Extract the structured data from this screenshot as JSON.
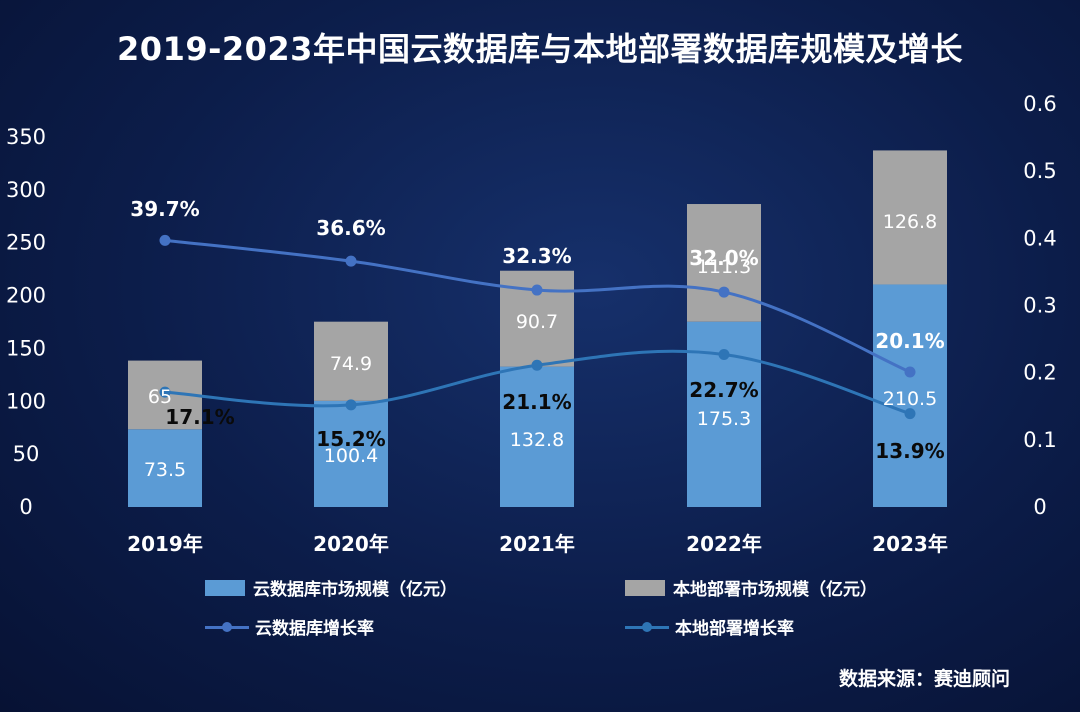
{
  "chart_data": {
    "type": "bar",
    "title": "2019-2023年中国云数据库与本地部署数据库规模及增长",
    "categories": [
      "2019年",
      "2020年",
      "2021年",
      "2022年",
      "2023年"
    ],
    "series": [
      {
        "name": "云数据库市场规模（亿元）",
        "kind": "bar",
        "stack": "total",
        "axis": "left",
        "color": "#5b9bd5",
        "values": [
          73.5,
          100.4,
          132.8,
          175.3,
          210.5
        ],
        "labels": [
          "73.5",
          "100.4",
          "132.8",
          "175.3",
          "210.5"
        ]
      },
      {
        "name": "本地部署市场规模（亿元）",
        "kind": "bar",
        "stack": "total",
        "axis": "left",
        "color": "#a5a5a5",
        "values": [
          65,
          74.9,
          90.7,
          111.3,
          126.8
        ],
        "labels": [
          "65",
          "74.9",
          "90.7",
          "111.3",
          "126.8"
        ]
      },
      {
        "name": "云数据库增长率",
        "kind": "line",
        "axis": "right",
        "color": "#4472c4",
        "values": [
          0.397,
          0.366,
          0.323,
          0.32,
          0.201
        ],
        "labels": [
          "39.7%",
          "36.6%",
          "32.3%",
          "32.0%",
          "20.1%"
        ]
      },
      {
        "name": "本地部署增长率",
        "kind": "line",
        "axis": "right",
        "color": "#2e75b6",
        "values": [
          0.171,
          0.152,
          0.211,
          0.227,
          0.139
        ],
        "labels": [
          "17.1%",
          "15.2%",
          "21.1%",
          "22.7%",
          "13.9%"
        ]
      }
    ],
    "y_left": {
      "min": 0,
      "max": 350,
      "step": 50,
      "ticks": [
        "0",
        "50",
        "100",
        "150",
        "200",
        "250",
        "300",
        "350"
      ]
    },
    "y_right": {
      "min": 0,
      "max": 0.6,
      "step": 0.1,
      "ticks": [
        "0",
        "0.1",
        "0.2",
        "0.3",
        "0.4",
        "0.5",
        "0.6"
      ]
    },
    "legend": [
      "云数据库市场规模（亿元）",
      "本地部署市场规模（亿元）",
      "云数据库增长率",
      "本地部署增长率"
    ],
    "legend_position": "bottom",
    "grid": false
  },
  "source_note": "数据来源：赛迪顾问"
}
